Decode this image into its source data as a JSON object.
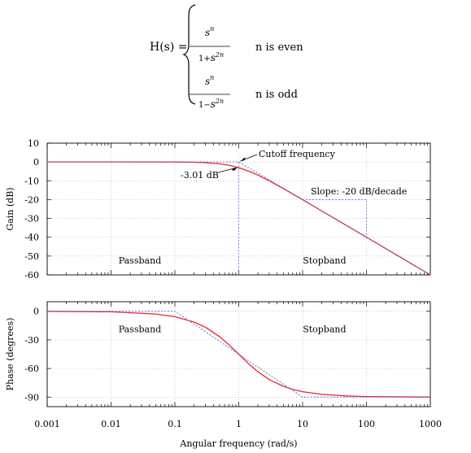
{
  "formula": {
    "lhs": "H(s) =",
    "case1": {
      "num_base": "s",
      "num_exp": "n",
      "den_prefix": "1+",
      "den_base": "s",
      "den_exp": "2n",
      "condition": "n is even"
    },
    "case2": {
      "num_base": "s",
      "num_exp": "n",
      "den_prefix": "1−",
      "den_base": "s",
      "den_exp": "2n",
      "condition": "n is odd"
    }
  },
  "colors": {
    "response": "#e8242c",
    "asymptote": "#6b6bd6",
    "grid": "#b4b4b4"
  },
  "chart_data": [
    {
      "type": "line",
      "ylabel": "Gain (dB)",
      "xscale": "log",
      "xlim": [
        0.001,
        1000
      ],
      "ylim": [
        -60,
        10
      ],
      "grid": true,
      "yticks": [
        10,
        0,
        -10,
        -20,
        -30,
        -40,
        -50,
        -60
      ],
      "series": [
        {
          "role": "response",
          "x": [
            0.001,
            0.01,
            0.1,
            0.2,
            0.3,
            0.5,
            0.7,
            1,
            1.5,
            2,
            3,
            5,
            10,
            20,
            50,
            100,
            200,
            500,
            1000
          ],
          "y": [
            0,
            0,
            -0.04,
            -0.17,
            -0.37,
            -0.97,
            -1.73,
            -3.01,
            -5.12,
            -6.99,
            -10,
            -14.15,
            -20.04,
            -26.03,
            -33.98,
            -40,
            -46.02,
            -53.98,
            -60
          ]
        },
        {
          "role": "asymptote",
          "x": [
            0.001,
            1,
            1000
          ],
          "y": [
            0,
            0,
            -60
          ]
        }
      ],
      "annotations": {
        "cutoff": "Cutoff frequency",
        "minus3db": "-3.01 dB",
        "slope": "Slope: -20 dB/decade",
        "passband": "Passband",
        "stopband": "Stopband"
      }
    },
    {
      "type": "line",
      "ylabel": "Phase (degrees)",
      "xlabel": "Angular frequency (rad/s)",
      "xscale": "log",
      "xlim": [
        0.001,
        1000
      ],
      "ylim": [
        -100,
        10
      ],
      "grid": true,
      "yticks": [
        0,
        -30,
        -60,
        -90
      ],
      "xticks": [
        "0.001",
        "0.01",
        "0.1",
        "1",
        "10",
        "100",
        "1000"
      ],
      "series": [
        {
          "role": "response",
          "x": [
            0.001,
            0.01,
            0.05,
            0.1,
            0.2,
            0.3,
            0.5,
            0.7,
            1,
            1.5,
            2,
            3,
            5,
            7,
            10,
            20,
            50,
            100,
            1000
          ],
          "y": [
            -0.06,
            -0.57,
            -2.86,
            -5.71,
            -11.31,
            -16.7,
            -26.57,
            -34.99,
            -45,
            -56.31,
            -63.43,
            -71.57,
            -78.69,
            -81.87,
            -84.29,
            -87.14,
            -88.85,
            -89.43,
            -89.94
          ]
        },
        {
          "role": "asymptote",
          "x": [
            0.001,
            0.1,
            10,
            1000
          ],
          "y": [
            0,
            0,
            -90,
            -90
          ]
        }
      ],
      "annotations": {
        "passband": "Passband",
        "stopband": "Stopband"
      }
    }
  ]
}
